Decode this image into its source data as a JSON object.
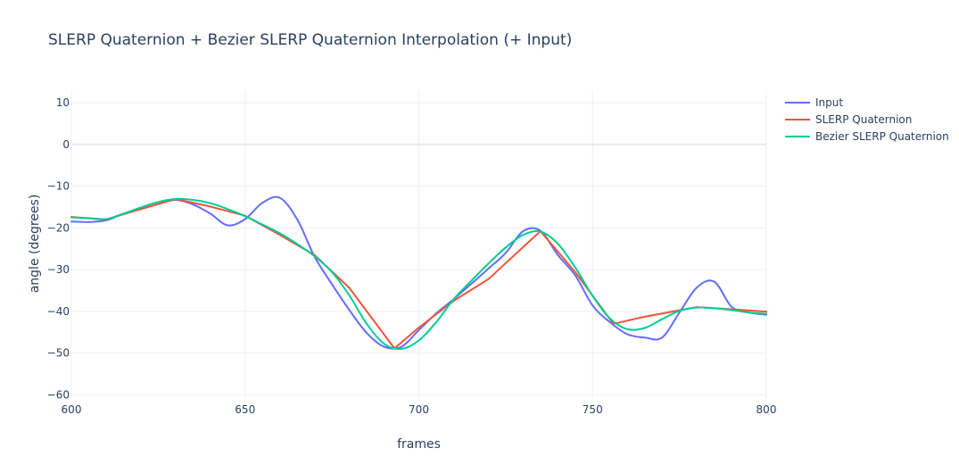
{
  "chart_data": {
    "type": "line",
    "title": "SLERP Quaternion + Bezier SLERP Quaternion Interpolation (+ Input)",
    "xlabel": "frames",
    "ylabel": "angle (degrees)",
    "xlim": [
      600,
      800
    ],
    "ylim": [
      -61,
      13
    ],
    "x_ticks": [
      600,
      650,
      700,
      750,
      800
    ],
    "y_ticks": [
      10,
      0,
      -10,
      -20,
      -30,
      -40,
      -50,
      -60
    ],
    "y_tick_labels": [
      "10",
      "0",
      "−10",
      "−20",
      "−30",
      "−40",
      "−50",
      "−60"
    ],
    "grid": true,
    "legend_position": "top-right",
    "series": [
      {
        "name": "Input",
        "color": "#636efa",
        "x": [
          600,
          605,
          610,
          615,
          620,
          625,
          630,
          635,
          640,
          645,
          650,
          655,
          660,
          665,
          670,
          675,
          680,
          685,
          690,
          695,
          700,
          705,
          710,
          715,
          720,
          725,
          730,
          735,
          740,
          745,
          750,
          755,
          760,
          765,
          770,
          775,
          780,
          785,
          790,
          795,
          800
        ],
        "y": [
          -18.5,
          -18.6,
          -18.2,
          -16.6,
          -15.5,
          -14.3,
          -13.3,
          -14.4,
          -16.6,
          -19.4,
          -17.9,
          -14.0,
          -12.8,
          -18.0,
          -26.9,
          -33.5,
          -39.7,
          -45.2,
          -48.5,
          -48.5,
          -44.5,
          -40.5,
          -37.1,
          -33.5,
          -29.8,
          -26.0,
          -20.8,
          -20.7,
          -26.5,
          -31.4,
          -38.6,
          -42.6,
          -45.5,
          -46.3,
          -46.3,
          -40.3,
          -34.3,
          -32.9,
          -38.9,
          -40.3,
          -40.8
        ]
      },
      {
        "name": "SLERP Quaternion",
        "color": "#ef553b",
        "x": [
          600,
          610,
          620,
          630,
          640,
          650,
          660,
          670,
          680,
          693,
          700,
          710,
          720,
          735,
          745,
          756,
          765,
          780,
          790,
          800
        ],
        "y": [
          -17.4,
          -18.0,
          -15.5,
          -13.1,
          -14.9,
          -17.1,
          -21.7,
          -26.5,
          -34.4,
          -48.9,
          -43.9,
          -37.5,
          -32.3,
          -20.8,
          -30.6,
          -43.0,
          -41.3,
          -39.0,
          -39.5,
          -40.1
        ]
      },
      {
        "name": "Bezier SLERP Quaternion",
        "color": "#00cc96",
        "x": [
          600,
          605,
          610,
          615,
          620,
          625,
          630,
          635,
          640,
          645,
          650,
          655,
          660,
          665,
          670,
          675,
          680,
          685,
          690,
          695,
          700,
          705,
          710,
          715,
          720,
          725,
          730,
          735,
          740,
          745,
          750,
          755,
          760,
          765,
          770,
          775,
          780,
          785,
          790,
          795,
          800
        ],
        "y": [
          -17.5,
          -17.7,
          -17.9,
          -16.6,
          -15.1,
          -13.8,
          -13.1,
          -13.3,
          -14.1,
          -15.5,
          -17.2,
          -19.2,
          -21.3,
          -23.9,
          -26.8,
          -30.6,
          -36.2,
          -43.0,
          -47.8,
          -49.0,
          -47.0,
          -42.6,
          -37.1,
          -32.8,
          -28.6,
          -24.7,
          -21.7,
          -20.9,
          -23.8,
          -29.5,
          -36.3,
          -41.7,
          -44.3,
          -44.0,
          -41.9,
          -39.9,
          -39.1,
          -39.3,
          -39.7,
          -40.3,
          -40.6
        ]
      }
    ]
  }
}
